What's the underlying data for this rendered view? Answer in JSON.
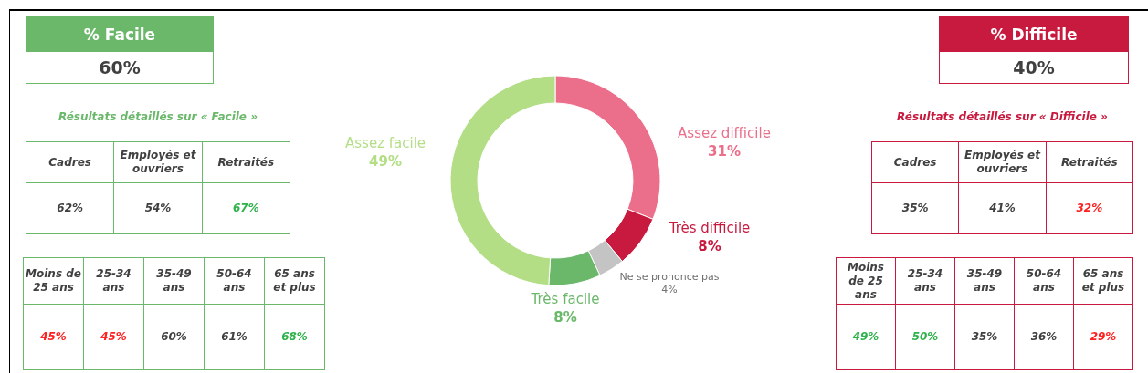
{
  "chart_data": [
    {
      "type": "other",
      "title": "% Facile",
      "annotations": [
        "60%"
      ],
      "color": "#6bb86b"
    },
    {
      "type": "other",
      "title": "Résultats détaillés sur « Facile »",
      "categories": [
        "Cadres",
        "Employés et ouvriers",
        "Retraités"
      ],
      "values": [
        62,
        54,
        67
      ],
      "value_labels": [
        "62%",
        "54%",
        "67%"
      ],
      "colors": [
        "#404040",
        "#404040",
        "#2eb24b"
      ],
      "color": "#6bb86b"
    },
    {
      "type": "other",
      "categories": [
        "Moins de 25 ans",
        "25-34 ans",
        "35-49 ans",
        "50-64 ans",
        "65 ans et plus"
      ],
      "values": [
        45,
        45,
        60,
        61,
        68
      ],
      "value_labels": [
        "45%",
        "45%",
        "60%",
        "61%",
        "68%"
      ],
      "colors": [
        "#ff2020",
        "#ff2020",
        "#404040",
        "#404040",
        "#2eb24b"
      ],
      "color": "#6bb86b"
    },
    {
      "type": "donut",
      "categories": [
        "Assez difficile",
        "Très difficile",
        "Ne se prononce pas",
        "Très facile",
        "Assez facile"
      ],
      "values": [
        31,
        8,
        4,
        8,
        49
      ],
      "value_labels": [
        "31%",
        "8%",
        "4%",
        "8%",
        "49%"
      ],
      "colors": [
        "#eb6e8a",
        "#c8193f",
        "#c4c4c4",
        "#6bb86b",
        "#b3de85"
      ]
    },
    {
      "type": "other",
      "title": "% Difficile",
      "annotations": [
        "40%"
      ],
      "color": "#c8193f"
    },
    {
      "type": "other",
      "title": "Résultats détaillés sur « Difficile »",
      "categories": [
        "Cadres",
        "Employés et ouvriers",
        "Retraités"
      ],
      "values": [
        35,
        41,
        32
      ],
      "value_labels": [
        "35%",
        "41%",
        "32%"
      ],
      "colors": [
        "#404040",
        "#404040",
        "#ff2020"
      ],
      "color": "#c8193f"
    },
    {
      "type": "other",
      "categories": [
        "Moins de 25 ans",
        "25-34 ans",
        "35-49 ans",
        "50-64 ans",
        "65 ans et plus"
      ],
      "values": [
        49,
        50,
        35,
        36,
        29
      ],
      "value_labels": [
        "49%",
        "50%",
        "35%",
        "36%",
        "29%"
      ],
      "colors": [
        "#2eb24b",
        "#2eb24b",
        "#404040",
        "#404040",
        "#ff2020"
      ],
      "color": "#c8193f"
    }
  ]
}
